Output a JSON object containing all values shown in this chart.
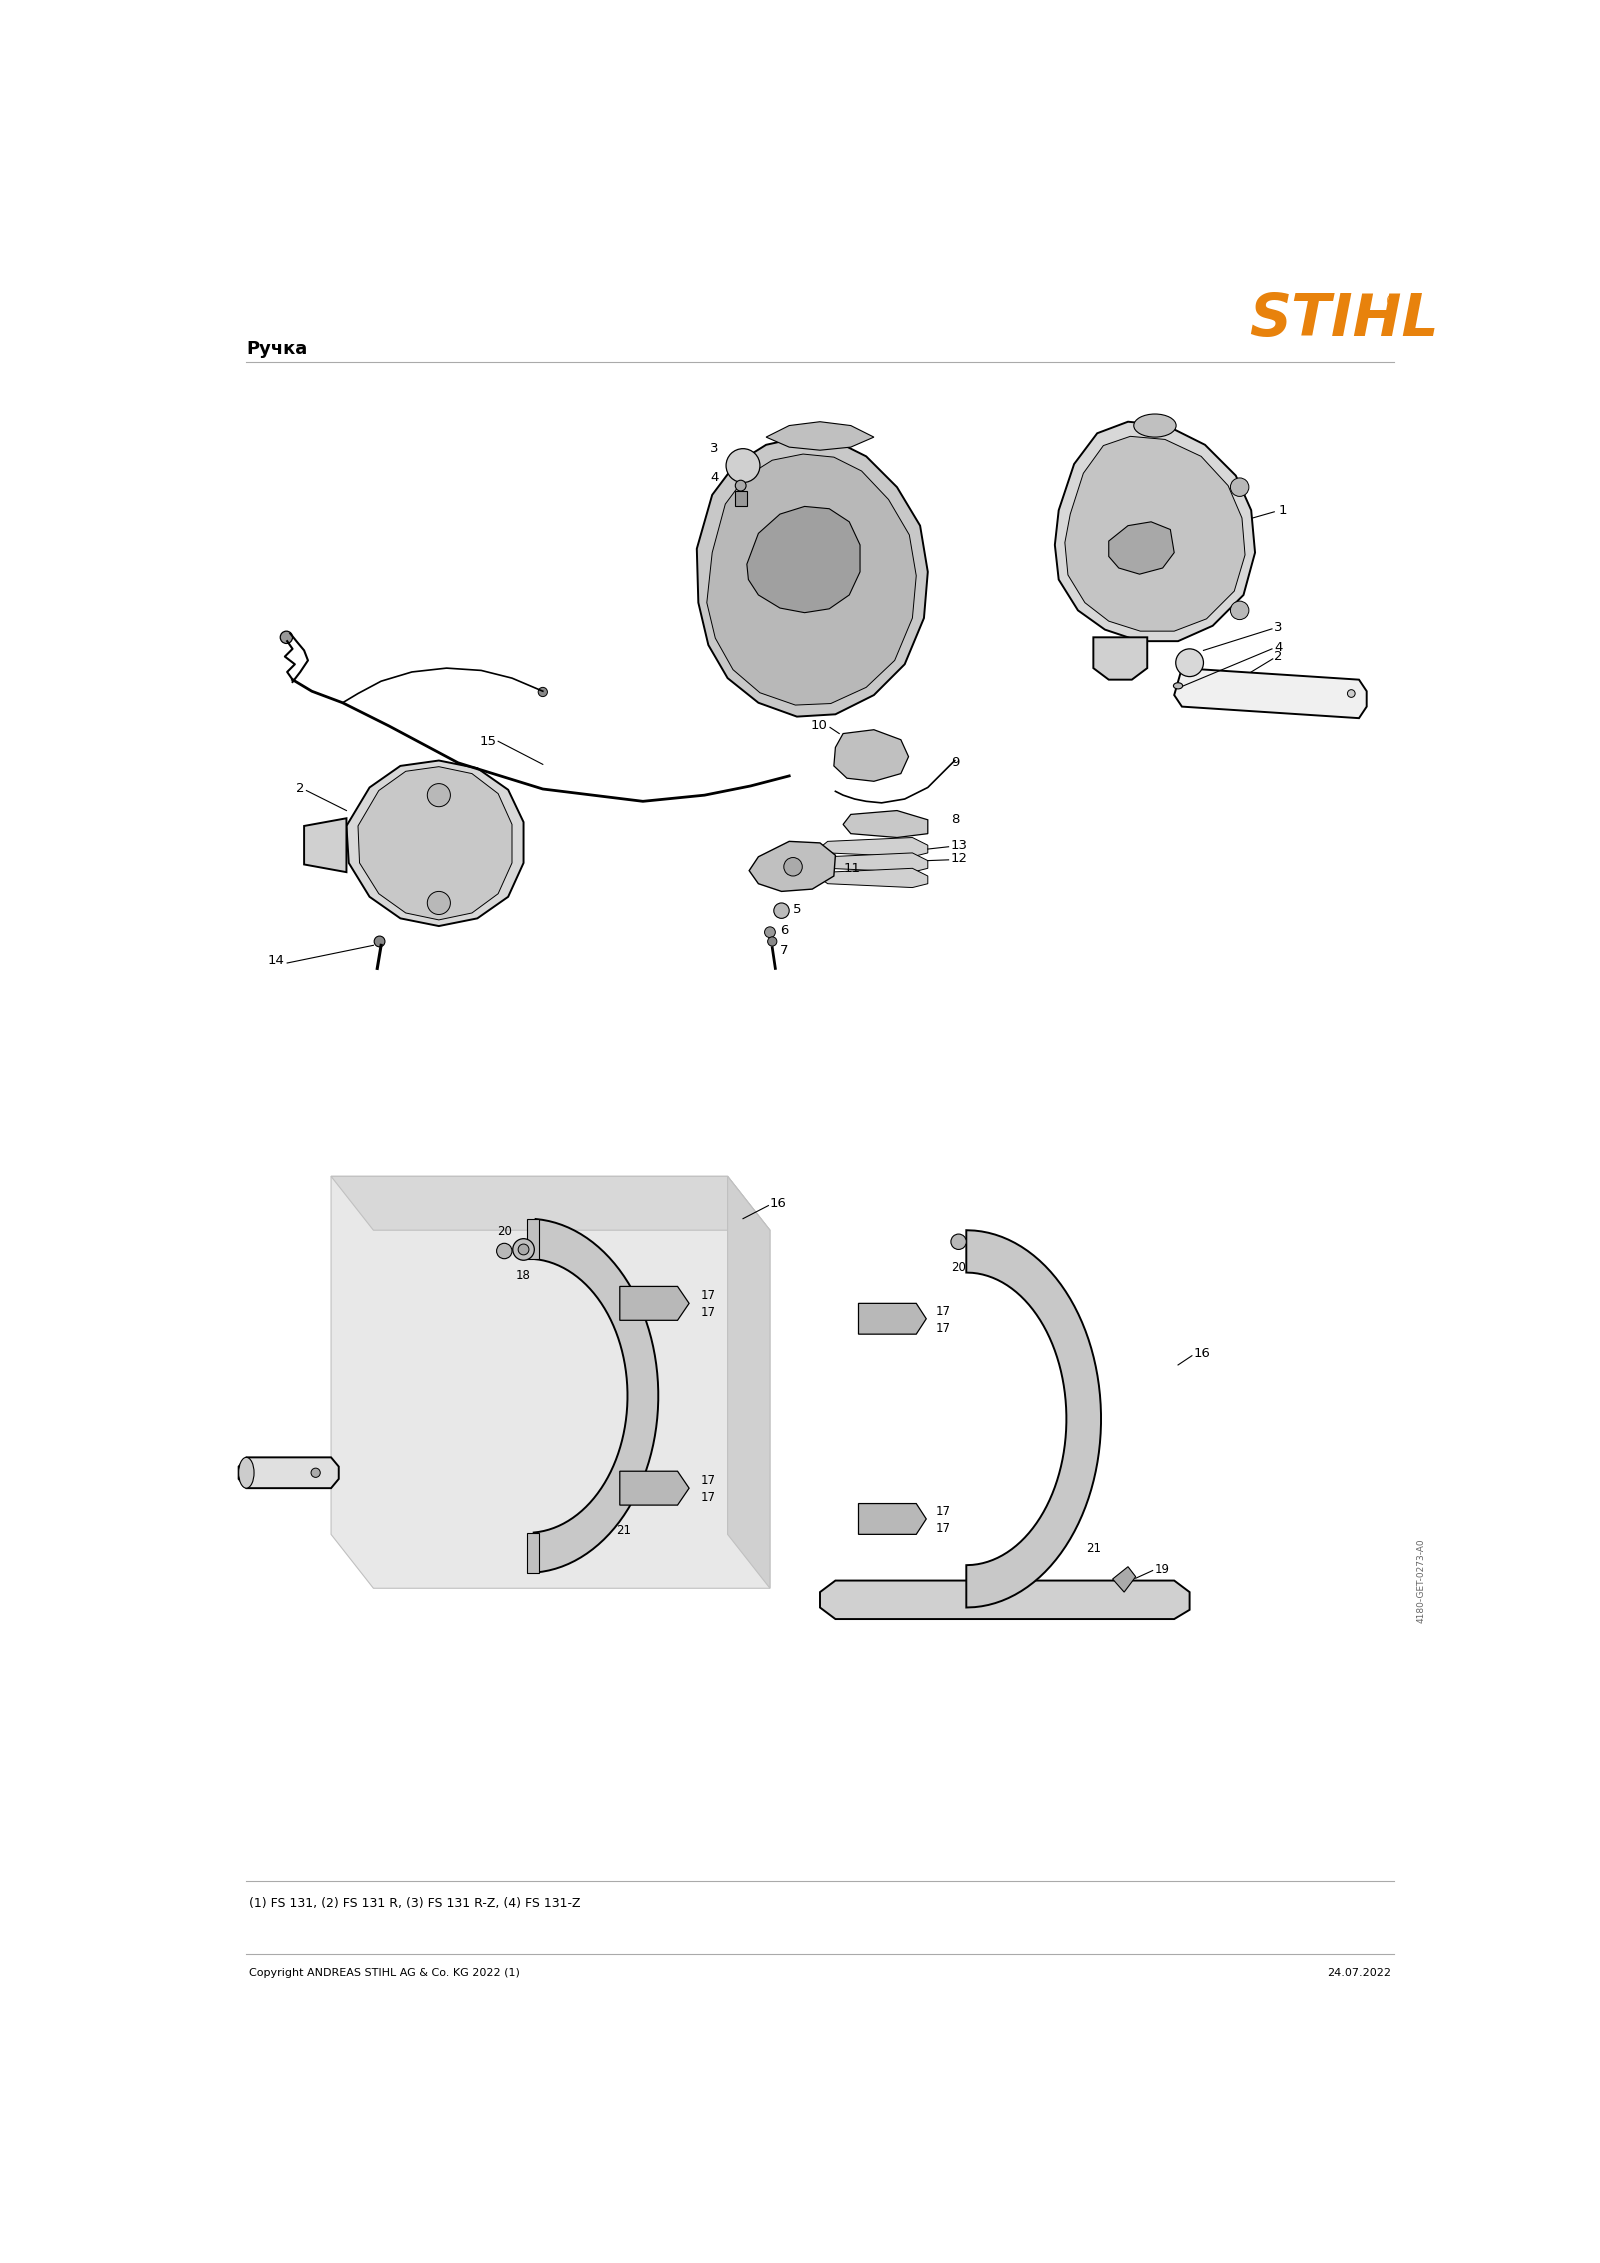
{
  "title": "Ручка",
  "stihl_color": "#E8820C",
  "bg_color": "#ffffff",
  "line_color": "#000000",
  "footer_left": "Copyright ANDREAS STIHL AG & Co. KG 2022 (1)",
  "footer_right": "24.07.2022",
  "footnote": "(1) FS 131, (2) FS 131 R, (3) FS 131 R-Z, (4) FS 131-Z",
  "divider_color": "#aaaaaa",
  "sidebar_text": "4180-GET-0273-A0",
  "title_fontsize": 13,
  "footnote_fontsize": 9,
  "footer_fontsize": 8,
  "label_fontsize": 9.5,
  "lw_main": 1.4,
  "lw_thin": 0.8,
  "part_gray": "#d0d0d0",
  "part_lightgray": "#e8e8e8",
  "part_darkgray": "#b0b0b0",
  "shadow_gray": "#e0e0e0",
  "orange_dark": "#c47a1a"
}
